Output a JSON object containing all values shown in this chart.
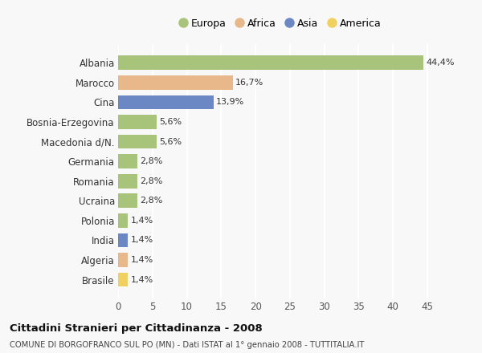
{
  "countries": [
    "Albania",
    "Marocco",
    "Cina",
    "Bosnia-Erzegovina",
    "Macedonia d/N.",
    "Germania",
    "Romania",
    "Ucraina",
    "Polonia",
    "India",
    "Algeria",
    "Brasile"
  ],
  "values": [
    44.4,
    16.7,
    13.9,
    5.6,
    5.6,
    2.8,
    2.8,
    2.8,
    1.4,
    1.4,
    1.4,
    1.4
  ],
  "labels": [
    "44,4%",
    "16,7%",
    "13,9%",
    "5,6%",
    "5,6%",
    "2,8%",
    "2,8%",
    "2,8%",
    "1,4%",
    "1,4%",
    "1,4%",
    "1,4%"
  ],
  "continents": [
    "Europa",
    "Africa",
    "Asia",
    "Europa",
    "Europa",
    "Europa",
    "Europa",
    "Europa",
    "Europa",
    "Asia",
    "Africa",
    "America"
  ],
  "colors": {
    "Europa": "#a8c47a",
    "Africa": "#e8b88a",
    "Asia": "#6b88c4",
    "America": "#f0d060"
  },
  "xlim": [
    0,
    47
  ],
  "xticks": [
    0,
    5,
    10,
    15,
    20,
    25,
    30,
    35,
    40,
    45
  ],
  "title": "Cittadini Stranieri per Cittadinanza - 2008",
  "subtitle": "COMUNE DI BORGOFRANCO SUL PO (MN) - Dati ISTAT al 1° gennaio 2008 - TUTTITALIA.IT",
  "background_color": "#f8f8f8",
  "bar_height": 0.72,
  "grid_color": "#ffffff",
  "grid_linewidth": 1.5,
  "legend_order": [
    "Europa",
    "Africa",
    "Asia",
    "America"
  ]
}
